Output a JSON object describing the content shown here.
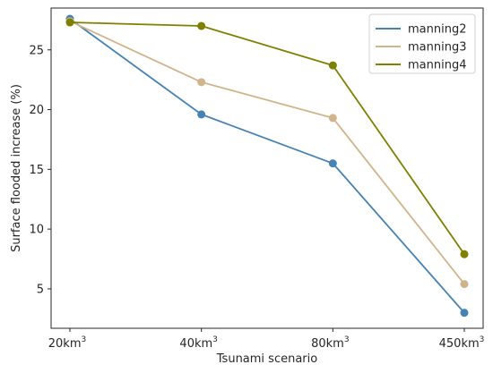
{
  "chart_data": {
    "type": "line",
    "xlabel": "Tsunami scenario",
    "ylabel": "Surface flooded increase (%)",
    "categories": [
      "20km",
      "40km",
      "80km",
      "450km"
    ],
    "category_superscript": "3",
    "yticks": [
      5,
      10,
      15,
      20,
      25
    ],
    "ylim": [
      1.7,
      28.5
    ],
    "grid": false,
    "legend_placement": "top-right",
    "series": [
      {
        "name": "manning2",
        "color": "#4682b4",
        "values": [
          27.6,
          19.6,
          15.5,
          3.0
        ]
      },
      {
        "name": "manning3",
        "color": "#d2b48c",
        "values": [
          27.4,
          22.3,
          19.3,
          5.4
        ]
      },
      {
        "name": "manning4",
        "color": "#808000",
        "values": [
          27.3,
          27.0,
          23.7,
          7.9
        ]
      }
    ]
  }
}
